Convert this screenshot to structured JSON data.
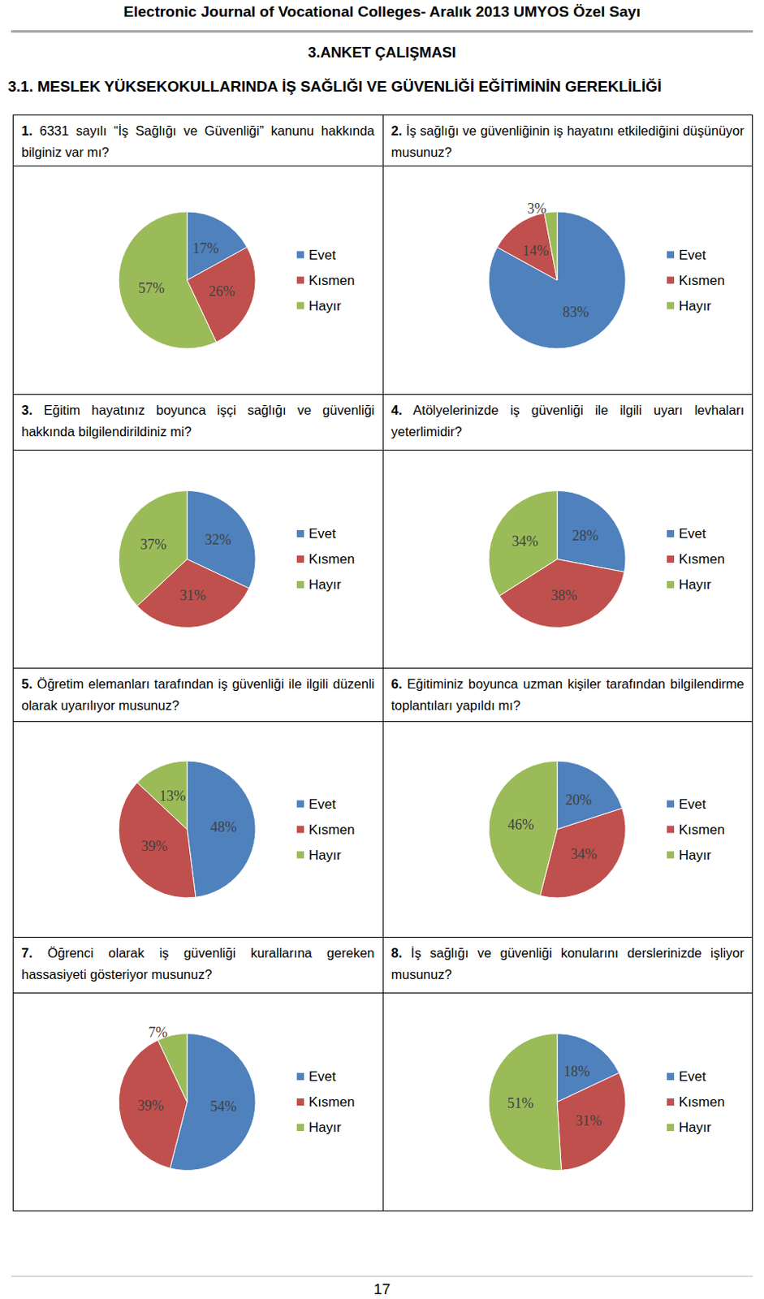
{
  "header": "Electronic Journal of Vocational Colleges- Aralık 2013 UMYOS Özel Sayı",
  "section": "3.ANKET ÇALIŞMASI",
  "subsection": "3.1. MESLEK YÜKSEKOKULLARINDA İŞ SAĞLIĞI VE GÜVENLİĞİ EĞİTİMİNİN GEREKLİLİĞİ",
  "chart_data": [
    {
      "type": "pie",
      "title": "1. 6331 sayılı “İş Sağlığı ve Güvenliği” kanunu hakkında bilginiz var mı?",
      "categories": [
        "Evet",
        "Kısmen",
        "Hayır"
      ],
      "values": [
        17,
        26,
        57
      ],
      "value_labels": [
        "17%",
        "26%",
        "57%"
      ],
      "colors": [
        "#4f81bd",
        "#c0504d",
        "#9bbb59"
      ],
      "data_labels": true,
      "legend": "right"
    },
    {
      "type": "pie",
      "title": "2. İş sağlığı ve güvenliğinin iş hayatını etkilediğini düşünüyor musunuz?",
      "categories": [
        "Evet",
        "Kısmen",
        "Hayır"
      ],
      "values": [
        83,
        14,
        3
      ],
      "value_labels": [
        "83%",
        "14%",
        "3%"
      ],
      "colors": [
        "#4f81bd",
        "#c0504d",
        "#9bbb59"
      ],
      "data_labels": true,
      "legend": "right"
    },
    {
      "type": "pie",
      "title": "3. Eğitim hayatınız boyunca işçi sağlığı ve güvenliği hakkında bilgilendirildiniz mi?",
      "categories": [
        "Evet",
        "Kısmen",
        "Hayır"
      ],
      "values": [
        32,
        31,
        37
      ],
      "value_labels": [
        "32%",
        "31%",
        "37%"
      ],
      "colors": [
        "#4f81bd",
        "#c0504d",
        "#9bbb59"
      ],
      "data_labels": true,
      "legend": "right"
    },
    {
      "type": "pie",
      "title": "4. Atölyelerinizde iş güvenliği ile ilgili uyarı levhaları yeterlimidir?",
      "categories": [
        "Evet",
        "Kısmen",
        "Hayır"
      ],
      "values": [
        28,
        38,
        34
      ],
      "value_labels": [
        "28%",
        "38%",
        "34%"
      ],
      "colors": [
        "#4f81bd",
        "#c0504d",
        "#9bbb59"
      ],
      "data_labels": true,
      "legend": "right"
    },
    {
      "type": "pie",
      "title": "5. Öğretim elemanları tarafından iş güvenliği ile ilgili düzenli olarak uyarılıyor musunuz?",
      "categories": [
        "Evet",
        "Kısmen",
        "Hayır"
      ],
      "values": [
        48,
        39,
        13
      ],
      "value_labels": [
        "48%",
        "39%",
        "13%"
      ],
      "colors": [
        "#4f81bd",
        "#c0504d",
        "#9bbb59"
      ],
      "data_labels": true,
      "legend": "right"
    },
    {
      "type": "pie",
      "title": "6. Eğitiminiz boyunca uzman kişiler tarafından bilgilendirme toplantıları yapıldı mı?",
      "categories": [
        "Evet",
        "Kısmen",
        "Hayır"
      ],
      "values": [
        20,
        34,
        46
      ],
      "value_labels": [
        "20%",
        "34%",
        "46%"
      ],
      "colors": [
        "#4f81bd",
        "#c0504d",
        "#9bbb59"
      ],
      "data_labels": true,
      "legend": "right"
    },
    {
      "type": "pie",
      "title": "7. Öğrenci olarak iş güvenliği kurallarına gereken hassasiyeti gösteriyor musunuz?",
      "categories": [
        "Evet",
        "Kısmen",
        "Hayır"
      ],
      "values": [
        54,
        39,
        7
      ],
      "value_labels": [
        "54%",
        "39%",
        "7%"
      ],
      "colors": [
        "#4f81bd",
        "#c0504d",
        "#9bbb59"
      ],
      "data_labels": true,
      "legend": "right"
    },
    {
      "type": "pie",
      "title": "8. İş sağlığı ve güvenliği konularını derslerinizde işliyor musunuz?",
      "categories": [
        "Evet",
        "Kısmen",
        "Hayır"
      ],
      "values": [
        18,
        31,
        51
      ],
      "value_labels": [
        "18%",
        "31%",
        "51%"
      ],
      "colors": [
        "#4f81bd",
        "#c0504d",
        "#9bbb59"
      ],
      "data_labels": true,
      "legend": "right"
    }
  ],
  "page_number": "17"
}
